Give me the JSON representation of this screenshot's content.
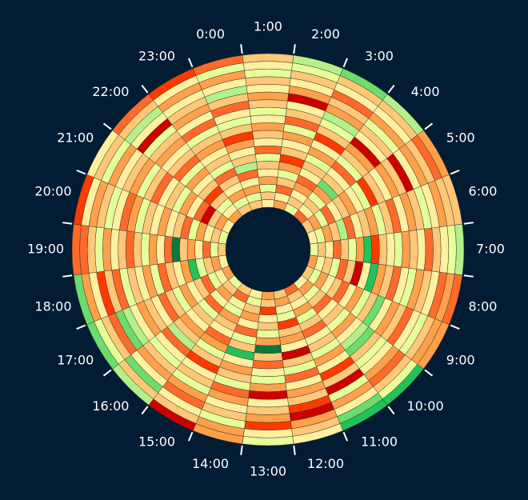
{
  "chart_data": {
    "type": "radial-heatmap",
    "categories": [
      "0:00",
      "1:00",
      "2:00",
      "3:00",
      "4:00",
      "5:00",
      "6:00",
      "7:00",
      "8:00",
      "9:00",
      "10:00",
      "11:00",
      "12:00",
      "13:00",
      "14:00",
      "15:00",
      "16:00",
      "17:00",
      "18:00",
      "19:00",
      "20:00",
      "21:00",
      "22:00",
      "23:00"
    ],
    "colors": [
      "#cc0000",
      "#ff3a00",
      "#ff6a2a",
      "#ffa04a",
      "#ffc878",
      "#fff0a0",
      "#e6ff9a",
      "#b4f08a",
      "#6cdc6c",
      "#22c25a",
      "#0a7a3c"
    ],
    "values": [
      [
        4,
        6,
        3,
        5,
        2,
        7,
        4,
        5,
        3,
        1,
        4,
        6,
        5,
        2,
        4,
        7,
        5,
        3,
        6,
        2
      ],
      [
        5,
        4,
        6,
        3,
        5,
        4,
        6,
        2,
        5,
        4,
        3,
        5,
        6,
        4,
        3,
        5,
        4,
        6,
        5,
        4
      ],
      [
        3,
        5,
        2,
        4,
        6,
        3,
        1,
        4,
        5,
        3,
        6,
        2,
        4,
        5,
        0,
        3,
        5,
        4,
        6,
        7
      ],
      [
        6,
        4,
        5,
        3,
        2,
        5,
        4,
        6,
        3,
        5,
        1,
        4,
        6,
        7,
        3,
        4,
        2,
        5,
        4,
        8
      ],
      [
        2,
        5,
        4,
        6,
        3,
        8,
        4,
        5,
        2,
        6,
        4,
        3,
        0,
        5,
        4,
        6,
        3,
        5,
        4,
        7
      ],
      [
        4,
        3,
        6,
        2,
        5,
        4,
        3,
        5,
        6,
        1,
        4,
        5,
        3,
        4,
        0,
        5,
        3,
        4,
        2,
        3
      ],
      [
        5,
        6,
        3,
        4,
        7,
        2,
        5,
        4,
        3,
        6,
        4,
        2,
        5,
        3,
        4,
        6,
        5,
        3,
        4,
        4
      ],
      [
        6,
        4,
        5,
        2,
        4,
        6,
        3,
        9,
        1,
        4,
        5,
        6,
        3,
        4,
        5,
        2,
        4,
        5,
        6,
        7
      ],
      [
        3,
        5,
        4,
        6,
        2,
        4,
        0,
        5,
        9,
        3,
        4,
        2,
        5,
        6,
        3,
        4,
        5,
        2,
        3,
        2
      ],
      [
        4,
        6,
        3,
        5,
        4,
        2,
        5,
        3,
        6,
        4,
        8,
        5,
        3,
        4,
        2,
        5,
        6,
        4,
        3,
        3
      ],
      [
        5,
        3,
        6,
        4,
        2,
        5,
        4,
        6,
        3,
        5,
        7,
        8,
        4,
        6,
        5,
        3,
        2,
        4,
        6,
        9
      ],
      [
        2,
        4,
        5,
        3,
        6,
        4,
        2,
        5,
        4,
        6,
        3,
        5,
        1,
        4,
        0,
        6,
        3,
        5,
        8,
        9
      ],
      [
        4,
        3,
        5,
        6,
        1,
        4,
        3,
        5,
        0,
        4,
        6,
        2,
        5,
        3,
        4,
        1,
        0,
        3,
        4,
        5
      ],
      [
        3,
        4,
        1,
        5,
        4,
        6,
        3,
        10,
        4,
        2,
        5,
        6,
        3,
        0,
        5,
        4,
        3,
        1,
        5,
        6
      ],
      [
        5,
        6,
        4,
        3,
        5,
        2,
        6,
        4,
        9,
        5,
        3,
        4,
        6,
        2,
        3,
        5,
        4,
        6,
        3,
        3
      ],
      [
        4,
        2,
        5,
        6,
        3,
        4,
        5,
        2,
        3,
        6,
        4,
        1,
        5,
        4,
        6,
        3,
        2,
        5,
        4,
        0
      ],
      [
        6,
        4,
        3,
        5,
        2,
        6,
        4,
        5,
        3,
        4,
        7,
        2,
        5,
        6,
        4,
        3,
        5,
        8,
        4,
        7
      ],
      [
        3,
        5,
        6,
        2,
        4,
        5,
        3,
        6,
        4,
        2,
        5,
        4,
        3,
        5,
        7,
        8,
        2,
        4,
        6,
        8
      ],
      [
        5,
        3,
        4,
        6,
        9,
        3,
        5,
        4,
        2,
        6,
        3,
        5,
        4,
        6,
        2,
        4,
        1,
        5,
        3,
        8
      ],
      [
        4,
        6,
        2,
        5,
        3,
        4,
        10,
        2,
        5,
        3,
        6,
        4,
        2,
        4,
        5,
        3,
        6,
        4,
        2,
        2
      ],
      [
        6,
        4,
        5,
        3,
        6,
        2,
        4,
        5,
        3,
        5,
        4,
        6,
        3,
        2,
        5,
        6,
        4,
        3,
        5,
        1
      ],
      [
        5,
        3,
        4,
        0,
        2,
        5,
        3,
        6,
        4,
        5,
        2,
        4,
        6,
        3,
        4,
        5,
        3,
        6,
        4,
        5
      ],
      [
        3,
        5,
        6,
        4,
        1,
        4,
        5,
        3,
        6,
        2,
        4,
        5,
        3,
        4,
        6,
        0,
        5,
        7,
        4,
        2
      ],
      [
        4,
        6,
        3,
        5,
        4,
        2,
        6,
        4,
        5,
        3,
        4,
        6,
        2,
        5,
        3,
        4,
        5,
        3,
        5,
        1
      ]
    ]
  }
}
